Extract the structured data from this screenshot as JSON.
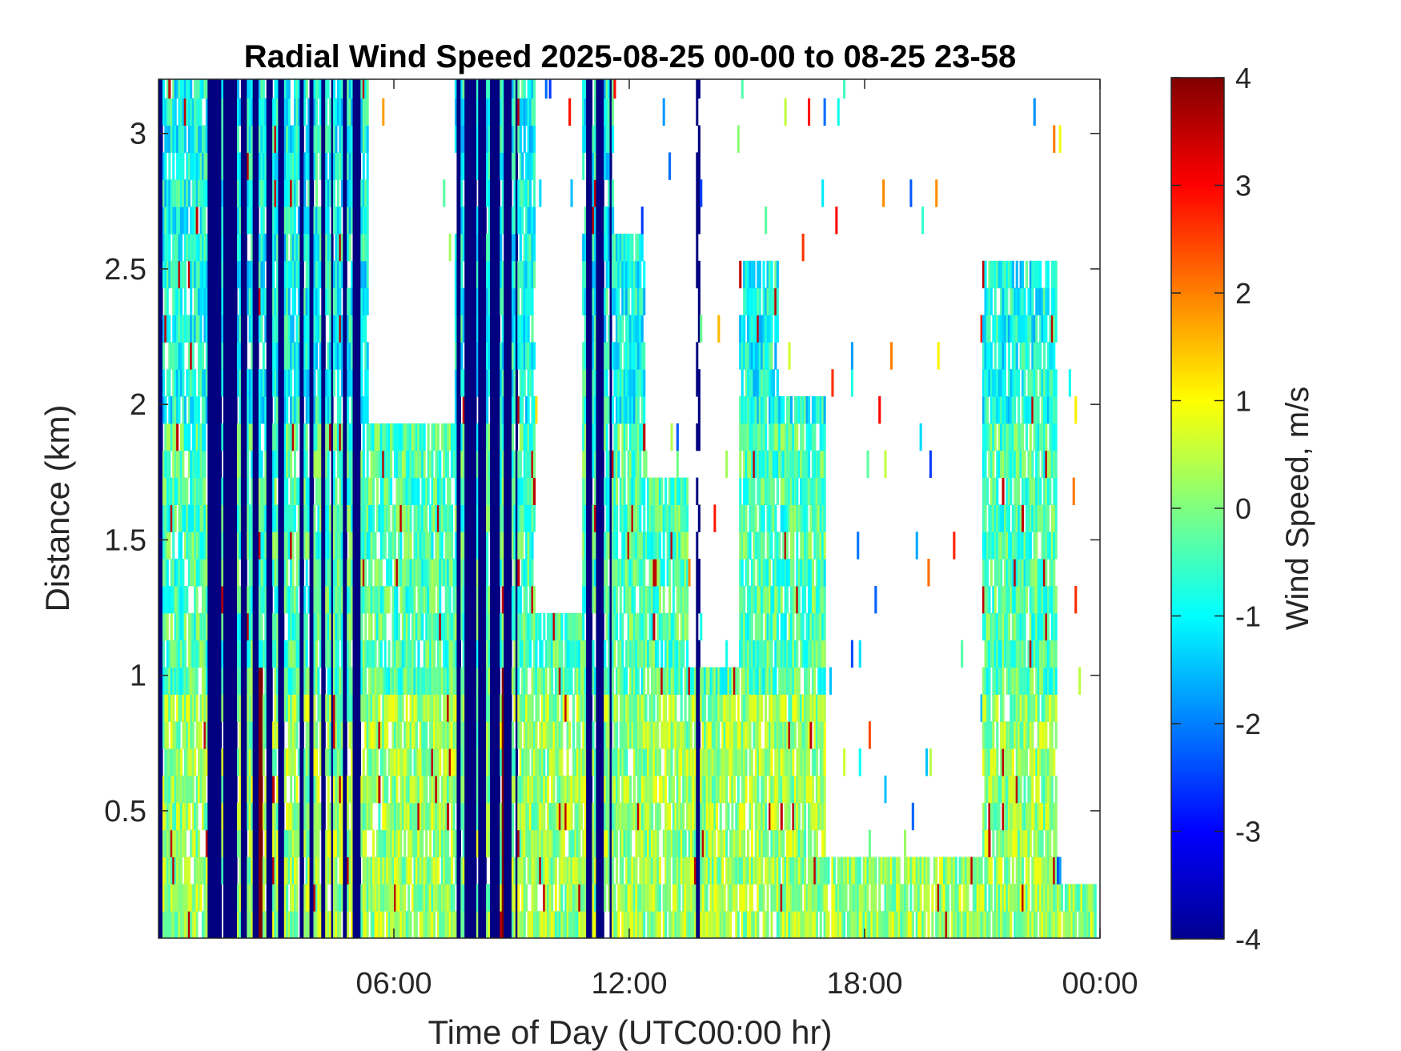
{
  "chart_data": {
    "type": "heatmap",
    "title": "Radial Wind Speed 2025-08-25 00-00 to 08-25 23-58",
    "xlabel": "Time of Day (UTC00:00 hr)",
    "ylabel": "Distance (km)",
    "x_unit": "hours UTC",
    "xlim": [
      0,
      24
    ],
    "ylim": [
      0.03,
      3.2
    ],
    "x_ticks": [
      {
        "value": 6,
        "label": "06:00"
      },
      {
        "value": 12,
        "label": "12:00"
      },
      {
        "value": 18,
        "label": "18:00"
      },
      {
        "value": 24,
        "label": "00:00"
      }
    ],
    "y_ticks": [
      {
        "value": 0.5,
        "label": "0.5"
      },
      {
        "value": 1,
        "label": "1"
      },
      {
        "value": 1.5,
        "label": "1.5"
      },
      {
        "value": 2,
        "label": "2"
      },
      {
        "value": 2.5,
        "label": "2.5"
      },
      {
        "value": 3,
        "label": "3"
      }
    ],
    "colorbar": {
      "label": "Wind Speed, m/s",
      "colormap": "jet",
      "clim": [
        -4,
        4
      ],
      "ticks": [
        "4",
        "3",
        "2",
        "1",
        "0",
        "-1",
        "-2",
        "-3",
        "-4"
      ]
    },
    "grid": false,
    "saturated_low_columns_hours": [
      [
        0.0,
        0.1
      ],
      [
        1.25,
        1.6
      ],
      [
        1.65,
        2.0
      ],
      [
        2.1,
        2.25
      ],
      [
        2.35,
        2.5
      ],
      [
        2.7,
        2.85
      ],
      [
        3.0,
        3.15
      ],
      [
        3.55,
        3.65
      ],
      [
        3.8,
        3.9
      ],
      [
        4.1,
        4.2
      ],
      [
        4.35,
        4.4
      ],
      [
        4.65,
        4.75
      ],
      [
        4.9,
        5.0
      ],
      [
        5.0,
        5.1
      ],
      [
        7.55,
        7.65
      ],
      [
        7.75,
        8.05
      ],
      [
        8.1,
        8.3
      ],
      [
        8.4,
        8.65
      ],
      [
        8.75,
        8.95
      ],
      [
        9.05,
        9.1
      ],
      [
        10.9,
        11.05
      ],
      [
        11.15,
        11.35
      ],
      [
        11.5,
        11.55
      ],
      [
        13.7,
        13.78
      ]
    ],
    "saturated_high_columns_hours": [
      [
        0.0,
        0.08
      ],
      [
        1.25,
        1.35
      ],
      [
        1.5,
        1.6
      ],
      [
        1.8,
        1.95
      ],
      [
        2.5,
        2.6
      ],
      [
        8.1,
        8.2
      ],
      [
        8.7,
        8.75
      ]
    ],
    "valid_data_extent": [
      {
        "hours": [
          0,
          0.2
        ],
        "top_km": 3.2
      },
      {
        "hours": [
          0.2,
          1.2
        ],
        "top_km": 3.2
      },
      {
        "hours": [
          1.2,
          5.3
        ],
        "top_km": 3.2
      },
      {
        "hours": [
          5.3,
          7.5
        ],
        "top_km": 1.9
      },
      {
        "hours": [
          7.5,
          9.6
        ],
        "top_km": 3.2
      },
      {
        "hours": [
          9.6,
          10.8
        ],
        "top_km": 1.2
      },
      {
        "hours": [
          10.8,
          11.6
        ],
        "top_km": 3.2
      },
      {
        "hours": [
          11.6,
          12.4
        ],
        "top_km": 2.6
      },
      {
        "hours": [
          12.4,
          13.5
        ],
        "top_km": 1.7
      },
      {
        "hours": [
          13.5,
          14.8
        ],
        "top_km": 1.0
      },
      {
        "hours": [
          14.8,
          15.8
        ],
        "top_km": 2.5
      },
      {
        "hours": [
          15.8,
          17.0
        ],
        "top_km": 2.0
      },
      {
        "hours": [
          17.0,
          21.0
        ],
        "top_km": 0.25
      },
      {
        "hours": [
          21.0,
          22.9
        ],
        "top_km": 2.5
      },
      {
        "hours": [
          22.9,
          23.9
        ],
        "top_km": 0.2
      }
    ]
  }
}
